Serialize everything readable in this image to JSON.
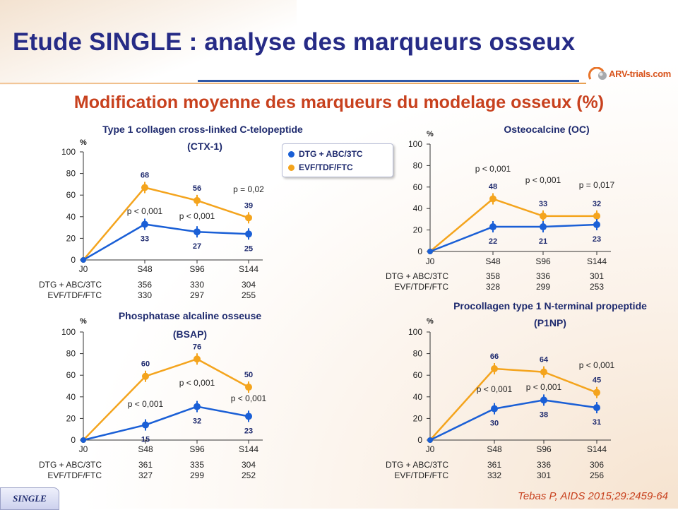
{
  "page": {
    "title": "Etude SINGLE : analyse des marqueurs osseux",
    "subtitle": "Modification moyenne des marqueurs du modelage osseux (%)",
    "logo": "ARV-trials.com",
    "footer_badge": "SINGLE",
    "citation": "Tebas P, AIDS 2015;29:2459-64"
  },
  "legend": {
    "series": [
      {
        "name": "DTG + ABC/3TC",
        "color": "#1a5fd6"
      },
      {
        "name": "EVF/TDF/FTC",
        "color": "#f4a41d"
      }
    ]
  },
  "chart_data": [
    {
      "type": "line",
      "title": "Type 1 collagen cross-linked C-telopeptide",
      "title2": "(CTX-1)",
      "ylabel": "%",
      "ylim": [
        0,
        100
      ],
      "yticks": [
        0,
        20,
        40,
        60,
        80,
        100
      ],
      "categories": [
        "J0",
        "S48",
        "S96",
        "S144"
      ],
      "series": [
        {
          "name": "DTG + ABC/3TC",
          "values": [
            0,
            33,
            27,
            25
          ],
          "plot": [
            0,
            33,
            26,
            24
          ]
        },
        {
          "name": "EVF/TDF/FTC",
          "values": [
            0,
            68,
            56,
            39
          ],
          "plot": [
            0,
            67,
            55,
            39
          ]
        }
      ],
      "pvalues": [
        "p < 0,001",
        "p < 0,001",
        "p = 0,02"
      ],
      "n_table": {
        "rows": [
          {
            "label": "DTG + ABC/3TC",
            "values": [
              "356",
              "330",
              "304"
            ]
          },
          {
            "label": "EVF/TDF/FTC",
            "values": [
              "330",
              "297",
              "255"
            ]
          }
        ]
      }
    },
    {
      "type": "line",
      "title": "Osteocalcine (OC)",
      "title2": "",
      "ylabel": "%",
      "ylim": [
        0,
        100
      ],
      "yticks": [
        0,
        20,
        40,
        60,
        80,
        100
      ],
      "categories": [
        "J0",
        "S48",
        "S96",
        "S144"
      ],
      "series": [
        {
          "name": "DTG + ABC/3TC",
          "values": [
            0,
            22,
            21,
            23
          ],
          "plot": [
            0,
            23,
            23,
            25
          ]
        },
        {
          "name": "EVF/TDF/FTC",
          "values": [
            0,
            48,
            33,
            32
          ],
          "plot": [
            0,
            49,
            33,
            33
          ]
        }
      ],
      "pvalues": [
        "p < 0,001",
        "p < 0,001",
        "p  = 0,017"
      ],
      "n_table": {
        "rows": [
          {
            "label": "DTG + ABC/3TC",
            "values": [
              "358",
              "336",
              "301"
            ]
          },
          {
            "label": "EVF/TDF/FTC",
            "values": [
              "328",
              "299",
              "253"
            ]
          }
        ]
      }
    },
    {
      "type": "line",
      "title": "Phosphatase alcaline osseuse",
      "title2": "(BSAP)",
      "ylabel": "%",
      "ylim": [
        0,
        100
      ],
      "yticks": [
        0,
        20,
        40,
        60,
        80,
        100
      ],
      "categories": [
        "J0",
        "S48",
        "S96",
        "S144"
      ],
      "series": [
        {
          "name": "DTG + ABC/3TC",
          "values": [
            0,
            15,
            32,
            23
          ],
          "plot": [
            0,
            14,
            31,
            22
          ]
        },
        {
          "name": "EVF/TDF/FTC",
          "values": [
            0,
            60,
            76,
            50
          ],
          "plot": [
            0,
            59,
            75,
            49
          ]
        }
      ],
      "pvalues": [
        "p < 0,001",
        "p < 0,001",
        "p < 0,001"
      ],
      "n_table": {
        "rows": [
          {
            "label": "DTG + ABC/3TC",
            "values": [
              "361",
              "335",
              "304"
            ]
          },
          {
            "label": "EVF/TDF/FTC",
            "values": [
              "327",
              "299",
              "252"
            ]
          }
        ]
      }
    },
    {
      "type": "line",
      "title": "Procollagen type 1 N-terminal propeptide",
      "title2": "(P1NP)",
      "ylabel": "%",
      "ylim": [
        0,
        100
      ],
      "yticks": [
        0,
        20,
        40,
        60,
        80,
        100
      ],
      "categories": [
        "J0",
        "S48",
        "S96",
        "S144"
      ],
      "series": [
        {
          "name": "DTG + ABC/3TC",
          "values": [
            0,
            30,
            38,
            31
          ],
          "plot": [
            0,
            29,
            37,
            30
          ]
        },
        {
          "name": "EVF/TDF/FTC",
          "values": [
            0,
            66,
            64,
            45
          ],
          "plot": [
            0,
            66,
            63,
            44
          ]
        }
      ],
      "pvalues": [
        "p < 0,001",
        "p < 0,001",
        "p < 0,001"
      ],
      "n_table": {
        "rows": [
          {
            "label": "DTG + ABC/3TC",
            "values": [
              "361",
              "336",
              "306"
            ]
          },
          {
            "label": "EVF/TDF/FTC",
            "values": [
              "332",
              "301",
              "256"
            ]
          }
        ]
      }
    }
  ]
}
